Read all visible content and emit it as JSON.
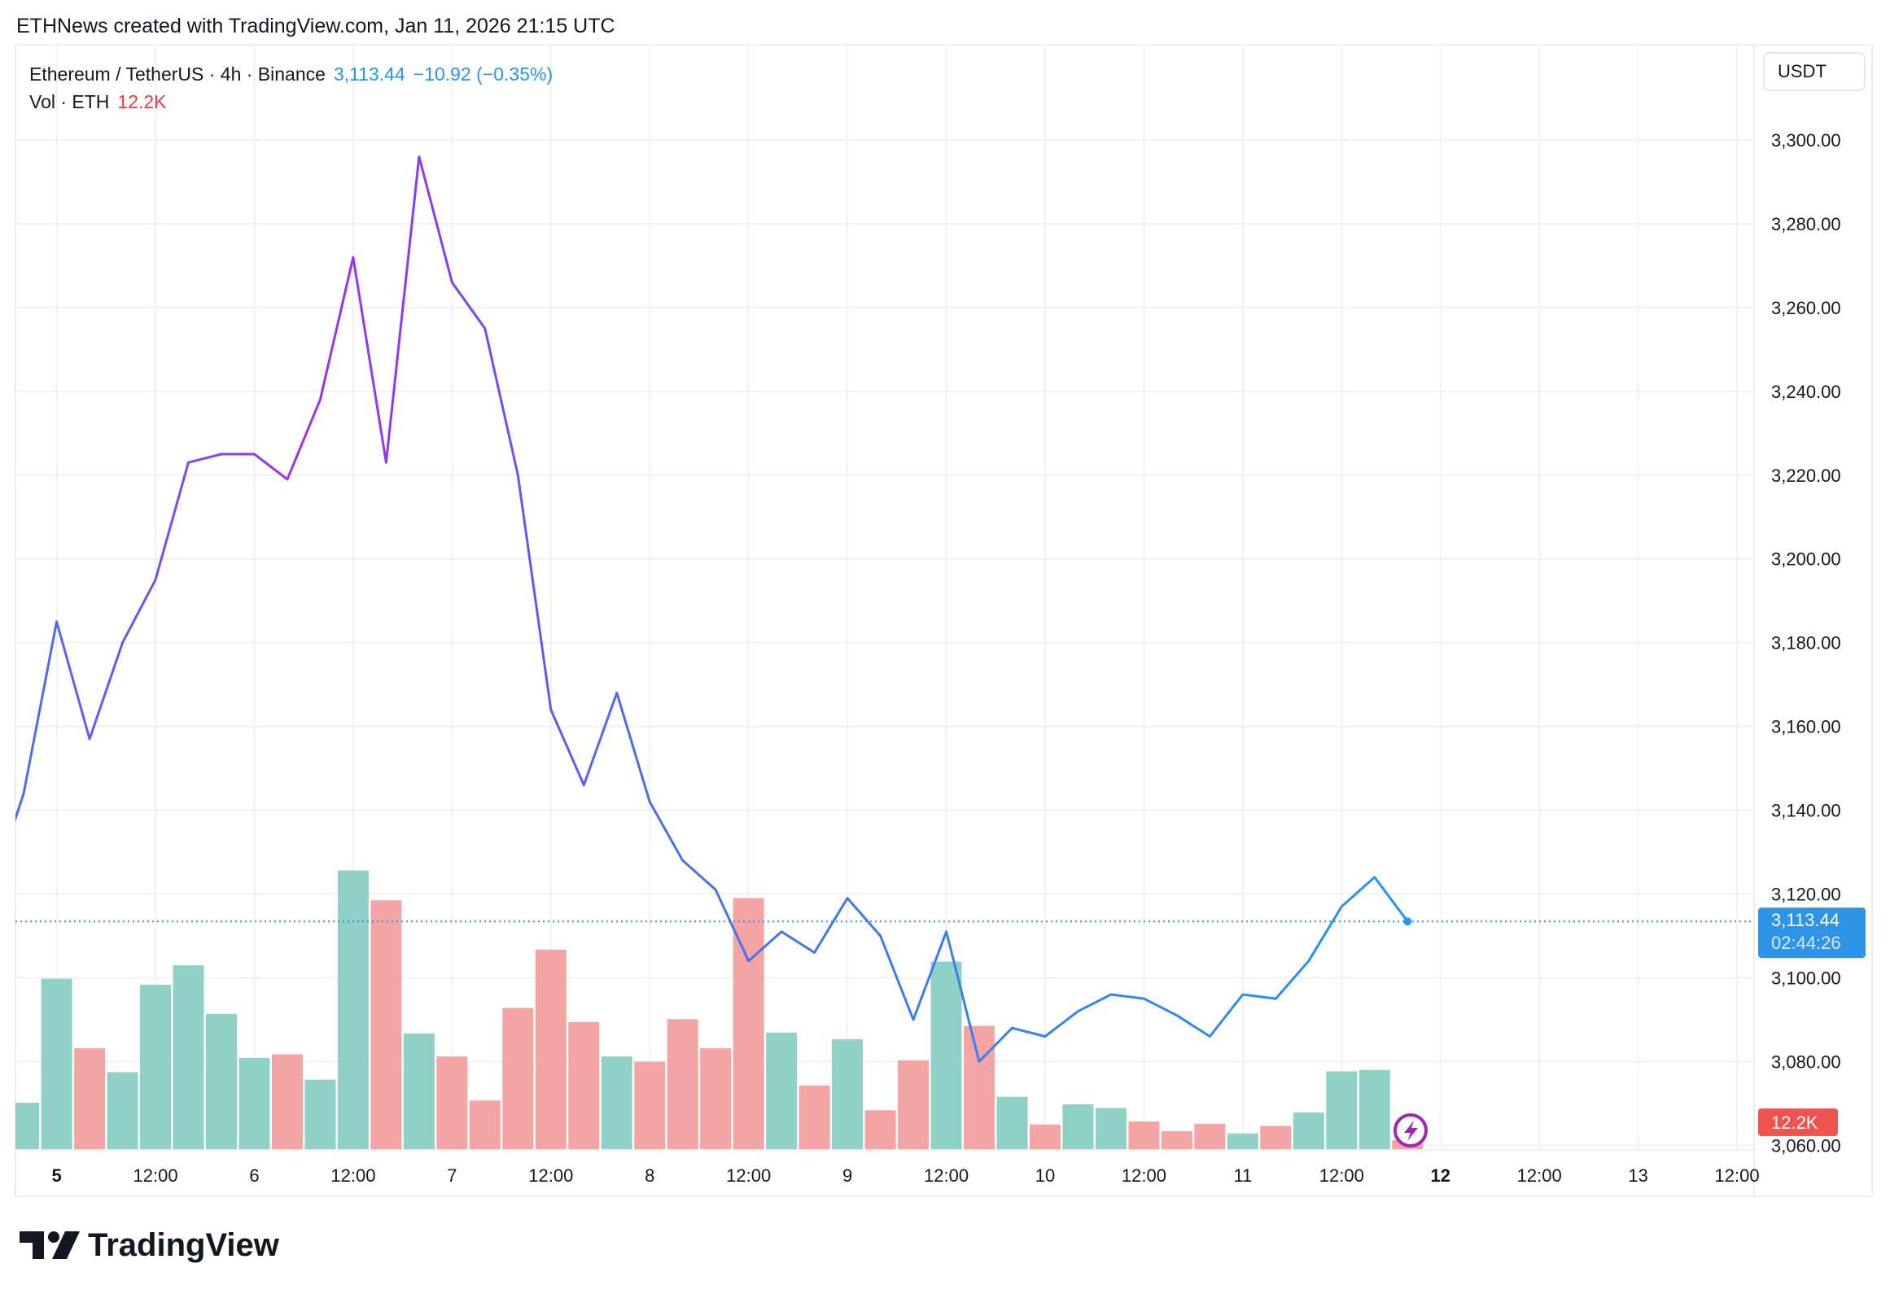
{
  "caption": "ETHNews created with TradingView.com, Jan 11, 2026 21:15 UTC",
  "legend": {
    "symbol": "Ethereum / TetherUS · 4h · Binance",
    "price": "3,113.44",
    "change": "−10.92 (−0.35%)",
    "vol_label": "Vol · ETH",
    "vol_value": "12.2K"
  },
  "currency_button": "USDT",
  "price_tag": {
    "price": "3,113.44",
    "countdown": "02:44:26"
  },
  "volume_tag": "12.2K",
  "logo_text": "TradingView",
  "colors": {
    "up": "#8fd1c7",
    "down": "#f5a4a4",
    "last": "#2d94e6",
    "vol_tag": "#ef5350",
    "grid": "#f0f0f0"
  },
  "chart_data": {
    "type": "line",
    "title": "Ethereum / TetherUS · 4h · Binance",
    "ylim": [
      3060,
      3310
    ],
    "yticks": [
      "3,060.00",
      "3,080.00",
      "3,100.00",
      "3,120.00",
      "3,140.00",
      "3,160.00",
      "3,180.00",
      "3,200.00",
      "3,220.00",
      "3,240.00",
      "3,260.00",
      "3,280.00",
      "3,300.00"
    ],
    "ytick_values": [
      3060,
      3080,
      3100,
      3120,
      3140,
      3160,
      3180,
      3200,
      3220,
      3240,
      3260,
      3280,
      3300
    ],
    "xticks": [
      {
        "label": "5",
        "bold": true
      },
      {
        "label": "12:00"
      },
      {
        "label": "6"
      },
      {
        "label": "12:00"
      },
      {
        "label": "7"
      },
      {
        "label": "12:00"
      },
      {
        "label": "8"
      },
      {
        "label": "12:00"
      },
      {
        "label": "9"
      },
      {
        "label": "12:00"
      },
      {
        "label": "10"
      },
      {
        "label": "12:00"
      },
      {
        "label": "11"
      },
      {
        "label": "12:00"
      },
      {
        "label": "12",
        "bold": true
      },
      {
        "label": "12:00"
      },
      {
        "label": "13"
      },
      {
        "label": "12:00"
      }
    ],
    "first_index": -1,
    "price": [
      3144,
      3185,
      3157,
      3180,
      3195,
      3223,
      3225,
      3225,
      3219,
      3238,
      3272,
      3223,
      3296,
      3266,
      3255,
      3220,
      3164,
      3146,
      3168,
      3142,
      3128,
      3121,
      3104,
      3111,
      3106,
      3119,
      3110,
      3090,
      3111,
      3080,
      3088,
      3086,
      3092,
      3096,
      3095,
      3091,
      3086,
      3096,
      3095,
      3104,
      3117,
      3124,
      3113.44
    ],
    "volume_k": [
      62,
      228,
      135,
      103,
      220,
      246,
      181,
      122,
      127,
      93,
      373,
      333,
      155,
      124,
      65,
      189,
      267,
      170,
      124,
      117,
      174,
      135,
      336,
      156,
      85,
      147,
      52,
      119,
      251,
      165,
      70,
      33,
      60,
      55,
      37,
      24,
      34,
      21,
      31,
      49,
      104,
      106,
      12.2
    ],
    "volume_dir": [
      "up",
      "up",
      "down",
      "up",
      "up",
      "up",
      "up",
      "up",
      "down",
      "up",
      "up",
      "down",
      "up",
      "down",
      "down",
      "down",
      "down",
      "down",
      "up",
      "down",
      "down",
      "down",
      "down",
      "up",
      "down",
      "up",
      "down",
      "down",
      "up",
      "down",
      "up",
      "down",
      "up",
      "up",
      "down",
      "down",
      "down",
      "up",
      "down",
      "up",
      "up",
      "up",
      "down"
    ],
    "last_price": 3113.44
  }
}
